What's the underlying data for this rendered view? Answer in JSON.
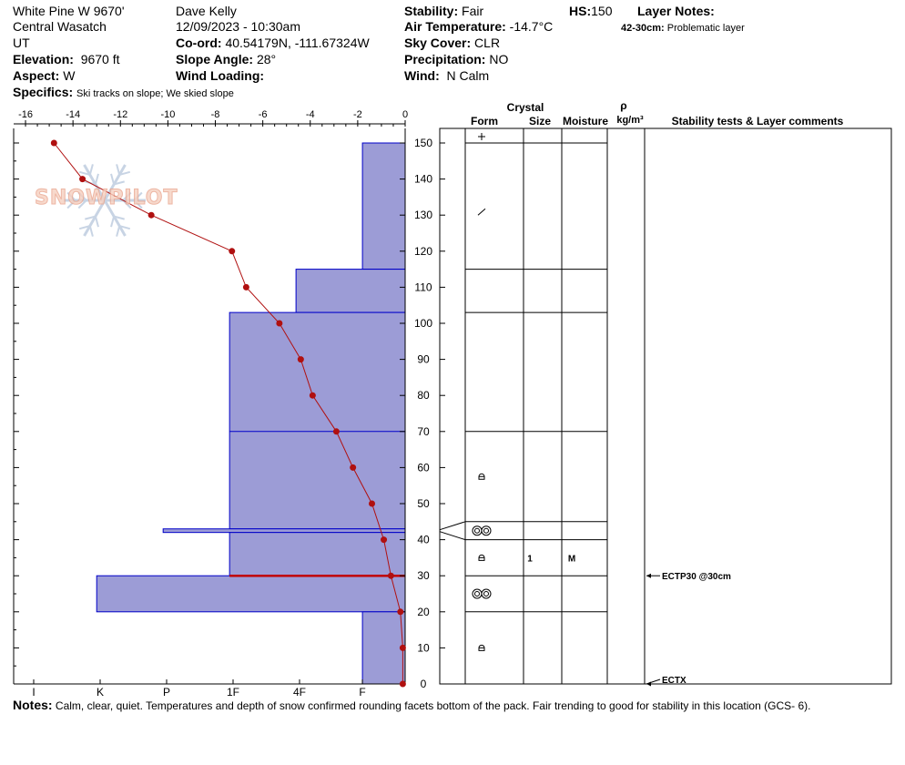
{
  "header": {
    "location": "White Pine W 9670'",
    "range": "Central Wasatch",
    "state": "UT",
    "elevation_label": "Elevation:",
    "elevation_value": "9670 ft",
    "aspect_label": "Aspect:",
    "aspect_value": "W",
    "specifics_label": "Specifics:",
    "specifics_value": "Ski tracks on slope; We skied slope",
    "observer": "Dave Kelly",
    "datetime": "12/09/2023 - 10:30am",
    "coord_label": "Co-ord:",
    "coord_value": "40.54179N, -111.67324W",
    "slope_label": "Slope Angle:",
    "slope_value": "28°",
    "wind_loading_label": "Wind Loading:",
    "wind_loading_value": "",
    "stability_label": "Stability:",
    "stability_value": "Fair",
    "air_temp_label": "Air Temperature:",
    "air_temp_value": "-14.7°C",
    "sky_label": "Sky Cover:",
    "sky_value": "CLR",
    "precip_label": "Precipitation:",
    "precip_value": "NO",
    "wind_label": "Wind:",
    "wind_value": "N Calm",
    "hs_label": "HS:",
    "hs_value": "150",
    "layer_notes_label": "Layer Notes:",
    "layer_note_depth": "42-30cm:",
    "layer_note_text": "Problematic layer"
  },
  "logo_text": "SNOWPILOT",
  "notes": {
    "label": "Notes:",
    "text": "Calm, clear, quiet.  Temperatures and depth of snow confirmed rounding facets bottom of the pack. Fair trending to good for stability in this location (GCS- 6)."
  },
  "chart_data": {
    "type": "snow-profile",
    "temperature_axis": {
      "ticks": [
        -16,
        -14,
        -12,
        -10,
        -8,
        -6,
        -4,
        -2,
        0
      ],
      "range": [
        -16.5,
        0
      ]
    },
    "hardness_axis": {
      "ticks": [
        "I",
        "K",
        "P",
        "1F",
        "4F",
        "F"
      ],
      "bar_scale_note": "hardness bar length expressed in temperature units of the top axis"
    },
    "depth_axis": {
      "ticks": [
        0,
        10,
        20,
        30,
        40,
        50,
        60,
        70,
        80,
        90,
        100,
        110,
        120,
        130,
        140,
        150
      ],
      "range": [
        0,
        150
      ]
    },
    "temperature_profile": [
      {
        "depth": 150,
        "temp": -14.8
      },
      {
        "depth": 140,
        "temp": -13.6
      },
      {
        "depth": 130,
        "temp": -10.7
      },
      {
        "depth": 120,
        "temp": -7.3
      },
      {
        "depth": 110,
        "temp": -6.7
      },
      {
        "depth": 100,
        "temp": -5.3
      },
      {
        "depth": 90,
        "temp": -4.4
      },
      {
        "depth": 80,
        "temp": -3.9
      },
      {
        "depth": 70,
        "temp": -2.9
      },
      {
        "depth": 60,
        "temp": -2.2
      },
      {
        "depth": 50,
        "temp": -1.4
      },
      {
        "depth": 40,
        "temp": -0.9
      },
      {
        "depth": 30,
        "temp": -0.6
      },
      {
        "depth": 20,
        "temp": -0.2
      },
      {
        "depth": 10,
        "temp": -0.1
      },
      {
        "depth": 0,
        "temp": -0.1
      }
    ],
    "hardness_layers": [
      {
        "top": 150,
        "bottom": 115,
        "extent": -1.8
      },
      {
        "top": 115,
        "bottom": 103,
        "extent": -4.6
      },
      {
        "top": 103,
        "bottom": 43,
        "extent": -7.4
      },
      {
        "top": 43,
        "bottom": 42,
        "extent": -10.2
      },
      {
        "top": 42,
        "bottom": 30,
        "extent": -7.4
      },
      {
        "top": 30,
        "bottom": 20,
        "extent": -13.0
      },
      {
        "top": 20,
        "bottom": 0,
        "extent": -1.8
      }
    ],
    "internal_boundaries": [
      70
    ],
    "problem_boundary": 30,
    "columns": {
      "crystal": "Crystal",
      "form": "Form",
      "size": "Size",
      "moisture": "Moisture",
      "rho": "ρ",
      "density_unit": "kg/m³",
      "comments": "Stability tests & Layer comments"
    },
    "layer_rows": [
      {
        "top": 150,
        "bottom": 115,
        "form": "+",
        "size": "",
        "moisture": ""
      },
      {
        "top": 115,
        "bottom": 103,
        "form": "",
        "size": "",
        "moisture": ""
      },
      {
        "top": 103,
        "bottom": 70,
        "form": "",
        "size": "",
        "moisture": ""
      },
      {
        "top": 70,
        "bottom": 45,
        "form": "round-faceted",
        "size": "",
        "moisture": ""
      },
      {
        "top": 45,
        "bottom": 40,
        "form": "depth-hoar",
        "size": "",
        "moisture": ""
      },
      {
        "top": 40,
        "bottom": 30,
        "form": "round-faceted",
        "size": "1",
        "moisture": "M"
      },
      {
        "top": 30,
        "bottom": 20,
        "form": "depth-hoar",
        "size": "",
        "moisture": ""
      },
      {
        "top": 20,
        "bottom": 0,
        "form": "round-faceted",
        "size": "",
        "moisture": ""
      }
    ],
    "extra_form_marks": [
      {
        "depth": 131,
        "form": "/"
      }
    ],
    "stability_tests": [
      {
        "depth": 30,
        "label": "ECTP30 @30cm"
      },
      {
        "depth": 0,
        "label": "ECTX"
      }
    ],
    "colors": {
      "hardness_fill": "#9c9cd6",
      "hardness_edge": "#0000c8",
      "temperature": "#b01010",
      "problem": "#c00000"
    }
  }
}
